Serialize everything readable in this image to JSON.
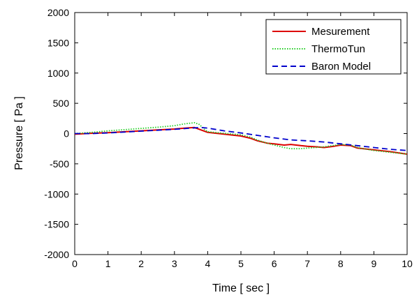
{
  "chart_data": {
    "type": "line",
    "xlabel": "Time [ sec ]",
    "ylabel": "Pressure [ Pa ]",
    "xlim": [
      0,
      10
    ],
    "ylim": [
      -2000,
      2000
    ],
    "x_ticks": [
      0,
      1,
      2,
      3,
      4,
      5,
      6,
      7,
      8,
      9,
      10
    ],
    "y_ticks": [
      2000,
      1500,
      1000,
      500,
      0,
      -500,
      -1000,
      -1500,
      -2000
    ],
    "grid": false,
    "legend_position": "top-right",
    "series": [
      {
        "name": "Mesurement",
        "color": "#dd0000",
        "dash": "solid",
        "x": [
          0,
          0.5,
          1,
          1.5,
          2,
          2.5,
          3,
          3.3,
          3.6,
          3.8,
          4,
          4.5,
          5,
          5.3,
          5.5,
          5.8,
          6,
          6.3,
          6.5,
          6.8,
          7,
          7.3,
          7.5,
          7.8,
          8,
          8.3,
          8.5,
          9,
          9.5,
          10
        ],
        "y": [
          -10,
          5,
          15,
          30,
          45,
          60,
          75,
          90,
          100,
          60,
          20,
          -10,
          -40,
          -80,
          -120,
          -160,
          -170,
          -190,
          -180,
          -200,
          -210,
          -220,
          -230,
          -210,
          -190,
          -200,
          -240,
          -270,
          -300,
          -340
        ]
      },
      {
        "name": "ThermoTun",
        "color": "#22cc22",
        "dash": "dotted",
        "x": [
          0,
          0.5,
          1,
          1.5,
          2,
          2.5,
          3,
          3.3,
          3.6,
          3.75,
          3.9,
          4,
          4.5,
          5,
          5.3,
          5.5,
          5.8,
          6,
          6.3,
          6.5,
          6.8,
          7,
          7.5,
          8,
          8.3,
          8.5,
          9,
          9.5,
          10
        ],
        "y": [
          0,
          20,
          45,
          65,
          85,
          105,
          130,
          160,
          180,
          150,
          70,
          30,
          5,
          -20,
          -60,
          -110,
          -160,
          -190,
          -230,
          -250,
          -250,
          -240,
          -220,
          -180,
          -190,
          -230,
          -280,
          -310,
          -340
        ]
      },
      {
        "name": "Baron Model",
        "color": "#0000cc",
        "dash": "dashed",
        "x": [
          0,
          0.5,
          1,
          1.5,
          2,
          2.5,
          3,
          3.5,
          3.8,
          4,
          4.5,
          5,
          5.5,
          6,
          6.5,
          7,
          7.5,
          8,
          8.5,
          9,
          9.5,
          10
        ],
        "y": [
          0,
          0,
          10,
          25,
          40,
          55,
          70,
          90,
          100,
          90,
          45,
          10,
          -30,
          -70,
          -105,
          -120,
          -140,
          -170,
          -200,
          -230,
          -260,
          -280
        ]
      }
    ]
  }
}
